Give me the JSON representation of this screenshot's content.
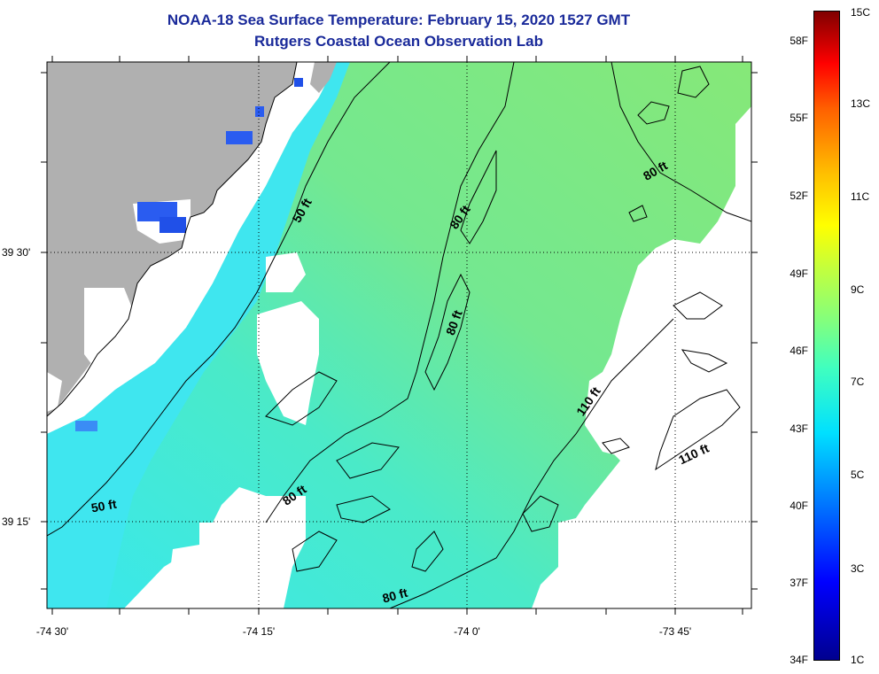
{
  "title": {
    "line1": "NOAA-18 Sea Surface Temperature:  February 15, 2020 1527 GMT",
    "line2": "Rutgers Coastal Ocean Observation Lab"
  },
  "axes": {
    "lon_labels": [
      "-74 30'",
      "-74 15'",
      "-74 0'",
      "-73 45'"
    ],
    "lat_labels": [
      "39 30'",
      "39 15'"
    ]
  },
  "contour_labels": [
    "50 ft",
    "50 ft",
    "80 ft",
    "80 ft",
    "80 ft",
    "80 ft",
    "80 ft",
    "110 ft",
    "110 ft"
  ],
  "colorbar": {
    "fahrenheit_labels": [
      "58F",
      "55F",
      "52F",
      "49F",
      "46F",
      "43F",
      "40F",
      "37F",
      "34F"
    ],
    "celsius_labels": [
      "15C",
      "13C",
      "11C",
      "9C",
      "7C",
      "5C",
      "3C",
      "1C"
    ]
  },
  "colors": {
    "land": "#b0b0b0",
    "nodata": "#ffffff",
    "water_green": "#7fe87f",
    "water_cyan": "#40e8f0",
    "water_teal": "#3ee8c0",
    "inlet_blue": "#2a5cf0",
    "title_color": "#1a2a9a"
  }
}
